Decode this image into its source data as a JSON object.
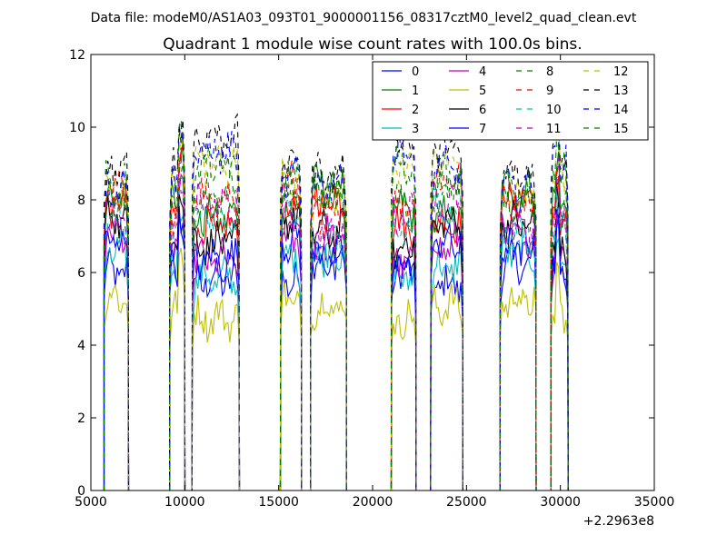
{
  "figure": {
    "suptitle": "Data file: modeM0/AS1A03_093T01_9000001156_08317cztM0_level2_quad_clean.evt"
  },
  "chart_data": {
    "type": "line",
    "title": "Quadrant 1 module wise count rates with 100.0s bins.",
    "xlabel": "",
    "ylabel": "",
    "xlim": [
      5000,
      35000
    ],
    "ylim": [
      0,
      12
    ],
    "x_offset_label": "+2.2963e8",
    "x_ticks": [
      5000,
      10000,
      15000,
      20000,
      25000,
      30000,
      35000
    ],
    "x_tick_labels": [
      "5000",
      "10000",
      "15000",
      "20000",
      "25000",
      "30000",
      "35000"
    ],
    "y_ticks": [
      0,
      2,
      4,
      6,
      8,
      10,
      12
    ],
    "y_tick_labels": [
      "0",
      "2",
      "4",
      "6",
      "8",
      "10",
      "12"
    ],
    "bin_size_s": 100,
    "grid": false,
    "legend_placement": "top-right",
    "legend_columns": 4,
    "segments": [
      [
        5700,
        7000
      ],
      [
        9200,
        10000
      ],
      [
        10400,
        12900
      ],
      [
        15100,
        16200
      ],
      [
        16700,
        18600
      ],
      [
        21000,
        22300
      ],
      [
        23100,
        24800
      ],
      [
        26800,
        28700
      ],
      [
        29500,
        30400
      ]
    ],
    "series": [
      {
        "name": "0",
        "color": "#0000ff",
        "dash": "solid",
        "level": 6.0
      },
      {
        "name": "1",
        "color": "#008000",
        "dash": "solid",
        "level": 7.9
      },
      {
        "name": "2",
        "color": "#ff0000",
        "dash": "solid",
        "level": 7.6
      },
      {
        "name": "3",
        "color": "#00bfbf",
        "dash": "solid",
        "level": 6.2
      },
      {
        "name": "4",
        "color": "#bf00bf",
        "dash": "solid",
        "level": 6.7
      },
      {
        "name": "5",
        "color": "#bfbf00",
        "dash": "solid",
        "level": 5.0
      },
      {
        "name": "6",
        "color": "#000000",
        "dash": "solid",
        "level": 7.1
      },
      {
        "name": "7",
        "color": "#0000ff",
        "dash": "solid",
        "level": 6.5
      },
      {
        "name": "8",
        "color": "#008000",
        "dash": "dashed",
        "level": 8.2
      },
      {
        "name": "9",
        "color": "#ff0000",
        "dash": "dashed",
        "level": 8.0
      },
      {
        "name": "10",
        "color": "#00bfbf",
        "dash": "dashed",
        "level": 7.3
      },
      {
        "name": "11",
        "color": "#bf00bf",
        "dash": "dashed",
        "level": 7.5
      },
      {
        "name": "12",
        "color": "#bfbf00",
        "dash": "dashed",
        "level": 8.6
      },
      {
        "name": "13",
        "color": "#000000",
        "dash": "dashed",
        "level": 9.2
      },
      {
        "name": "14",
        "color": "#0000ff",
        "dash": "dashed",
        "level": 8.8
      },
      {
        "name": "15",
        "color": "#008000",
        "dash": "dashed",
        "level": 8.4
      }
    ]
  }
}
